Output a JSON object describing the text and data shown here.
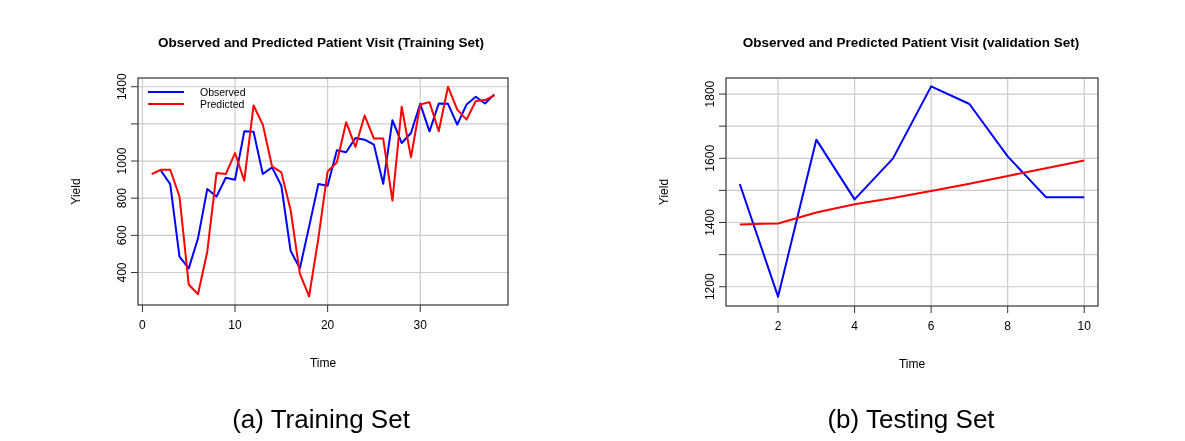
{
  "chart_data": [
    {
      "type": "line",
      "title": "Observed and Predicted Patient Visit (Training Set)",
      "xlabel": "Time",
      "ylabel": "Yield",
      "annotations": [
        "(a) Training Set"
      ],
      "x": [
        1,
        2,
        3,
        4,
        5,
        6,
        7,
        8,
        9,
        10,
        11,
        12,
        13,
        14,
        15,
        16,
        17,
        18,
        19,
        20,
        21,
        22,
        23,
        24,
        25,
        26,
        27,
        28,
        29,
        30,
        31,
        32,
        33,
        34,
        35,
        36,
        37,
        38
      ],
      "series": [
        {
          "name": "Observed",
          "color": "#0000ff",
          "values": [
            null,
            948,
            876,
            485,
            422,
            584,
            849,
            809,
            910,
            899,
            1160,
            1158,
            930,
            966,
            867,
            517,
            422,
            647,
            876,
            867,
            1058,
            1047,
            1124,
            1115,
            1088,
            877,
            1220,
            1097,
            1151,
            1308,
            1160,
            1310,
            1308,
            1196,
            1304,
            1346,
            1310,
            1359
          ]
        },
        {
          "name": "Predicted",
          "color": "#ff0000",
          "values": [
            930,
            953,
            953,
            809,
            335,
            283,
            512,
            935,
            930,
            1043,
            894,
            1299,
            1196,
            971,
            939,
            737,
            394,
            272,
            584,
            944,
            993,
            1209,
            1076,
            1245,
            1121,
            1121,
            787,
            1292,
            1020,
            1304,
            1317,
            1160,
            1400,
            1277,
            1223,
            1323,
            1328,
            1353
          ]
        }
      ],
      "xlim": [
        -0.48,
        39.48
      ],
      "xticks": [
        0,
        10,
        20,
        30
      ],
      "ylim": [
        225,
        1447
      ],
      "yticks": [
        400,
        600,
        800,
        1000,
        {
          "value": 1200,
          "label": null
        },
        1400
      ],
      "grid": true,
      "legend": "top left",
      "line_style": "solid",
      "marker": "none"
    },
    {
      "type": "line",
      "title": "Observed and Predicted Patient Visit (validation Set)",
      "xlabel": "Time",
      "ylabel": "Yield",
      "annotations": [
        "(b) Testing Set"
      ],
      "x": [
        1,
        2,
        3,
        4,
        5,
        6,
        7,
        8,
        9,
        10
      ],
      "series": [
        {
          "color": "#0000ff",
          "values": [
            1520,
            1169,
            1658,
            1472,
            1599,
            1824,
            1769,
            1606,
            1479,
            1479
          ]
        },
        {
          "color": "#ff0000",
          "values": [
            1394,
            1397,
            1431,
            1457,
            1476,
            1498,
            1521,
            1545,
            1569,
            1593
          ]
        }
      ],
      "xlim": [
        0.64,
        10.36
      ],
      "xticks": [
        2,
        4,
        6,
        8,
        10
      ],
      "ylim": [
        1140,
        1850
      ],
      "yticks": [
        1200,
        {
          "value": 1300,
          "label": null
        },
        1400,
        {
          "value": 1500,
          "label": null
        },
        1600,
        {
          "value": 1700,
          "label": null
        },
        1800
      ],
      "grid": true,
      "legend": false,
      "line_style": "solid",
      "marker": "none"
    }
  ]
}
